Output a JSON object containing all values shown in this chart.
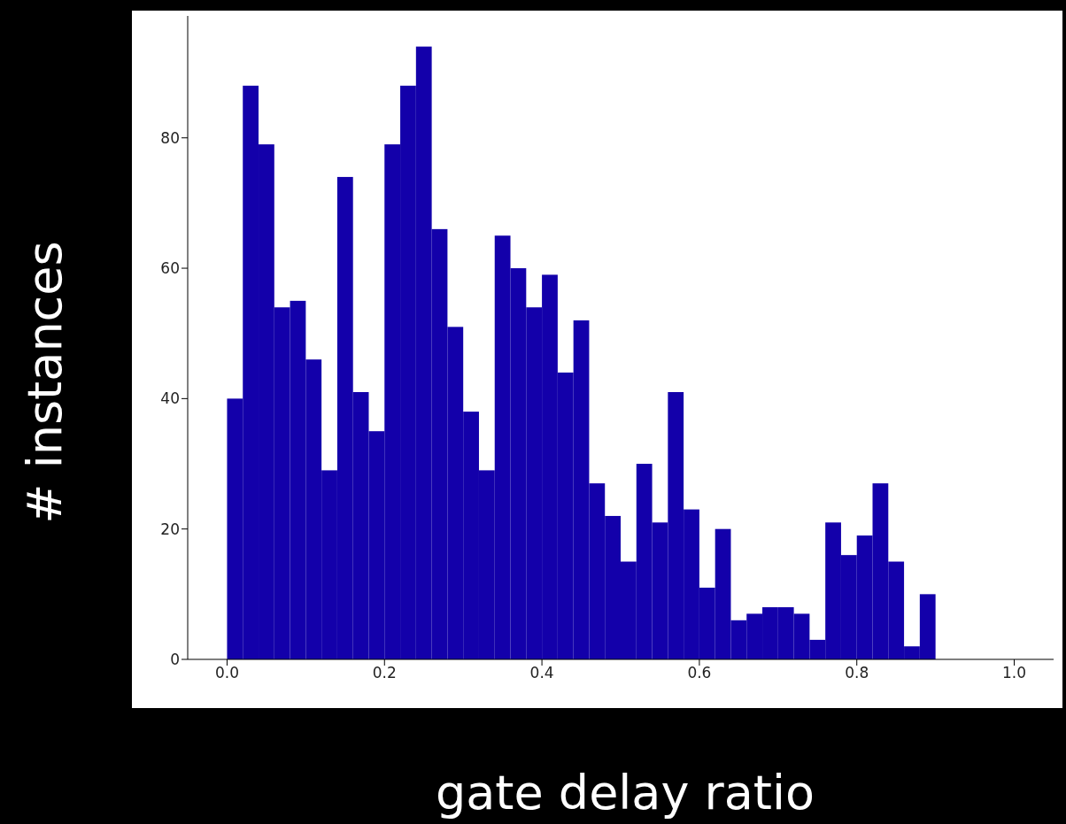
{
  "chart_data": {
    "type": "histogram",
    "xlabel": "gate delay ratio",
    "ylabel": "# instances",
    "color": "#1300aa",
    "bins": [
      0,
      0.02,
      0.04,
      0.06,
      0.08,
      0.1,
      0.12,
      0.14,
      0.16,
      0.18,
      0.2,
      0.22,
      0.24,
      0.26,
      0.28,
      0.3,
      0.32,
      0.34,
      0.36,
      0.38,
      0.4,
      0.42,
      0.44,
      0.46,
      0.48,
      0.5,
      0.52,
      0.54,
      0.56,
      0.58,
      0.6,
      0.62,
      0.64,
      0.66,
      0.68,
      0.7,
      0.72,
      0.74,
      0.76,
      0.78,
      0.8,
      0.82,
      0.84,
      0.86,
      0.88,
      0.9,
      0.92,
      0.94,
      0.96,
      0.98,
      1.0
    ],
    "values": [
      40,
      88,
      79,
      54,
      55,
      46,
      29,
      74,
      41,
      35,
      79,
      88,
      94,
      66,
      51,
      38,
      29,
      65,
      60,
      54,
      59,
      44,
      52,
      27,
      22,
      15,
      30,
      21,
      41,
      23,
      11,
      20,
      6,
      7,
      8,
      8,
      7,
      3,
      21,
      16,
      19,
      27,
      15,
      2,
      10,
      0,
      0,
      0,
      0,
      0
    ],
    "xlim": [
      -0.05,
      1.05
    ],
    "ylim": [
      0,
      98.7
    ],
    "xticks": [
      {
        "value": 0,
        "label": "0.0"
      },
      {
        "value": 0.2,
        "label": "0.2"
      },
      {
        "value": 0.4,
        "label": "0.4"
      },
      {
        "value": 0.6,
        "label": "0.6"
      },
      {
        "value": 0.8,
        "label": "0.8"
      },
      {
        "value": 1.0,
        "label": "1.0"
      }
    ],
    "yticks": [
      0,
      20,
      40,
      60,
      80
    ],
    "grid": false
  }
}
